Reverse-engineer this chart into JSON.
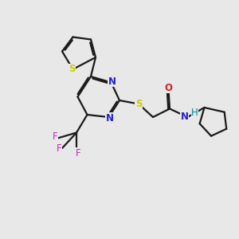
{
  "bg_color": "#e8e8e8",
  "bond_color": "#1a1a1a",
  "bond_width": 1.6,
  "dbo": 0.06,
  "atom_colors": {
    "S": "#cccc00",
    "N": "#2222cc",
    "O": "#cc2222",
    "F": "#cc22cc",
    "H": "#008888",
    "C": "#1a1a1a"
  },
  "fs": 8.5
}
